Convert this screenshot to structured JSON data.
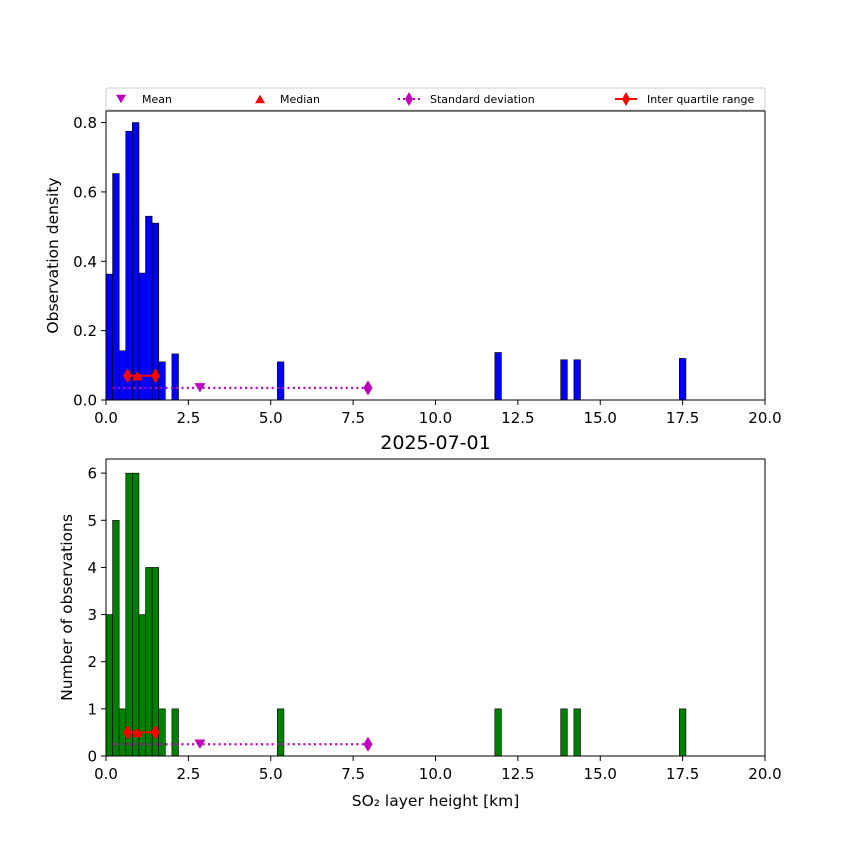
{
  "chart_data": [
    {
      "type": "bar",
      "panel": "top",
      "title": "",
      "xlabel": "",
      "ylabel": "Observation density",
      "xlim": [
        0,
        20
      ],
      "ylim": [
        0,
        0.8333
      ],
      "x_ticks": [
        "0.0",
        "2.5",
        "5.0",
        "7.5",
        "10.0",
        "12.5",
        "15.0",
        "17.5",
        "20.0"
      ],
      "y_ticks": [
        "0.0",
        "0.2",
        "0.4",
        "0.6",
        "0.8"
      ],
      "bar_color": "#0000ff",
      "bin_width": 0.2,
      "bins": [
        {
          "x": 0.0,
          "value": 0.363
        },
        {
          "x": 0.2,
          "value": 0.653
        },
        {
          "x": 0.4,
          "value": 0.142
        },
        {
          "x": 0.6,
          "value": 0.775
        },
        {
          "x": 0.8,
          "value": 0.8
        },
        {
          "x": 1.0,
          "value": 0.366
        },
        {
          "x": 1.2,
          "value": 0.53
        },
        {
          "x": 1.4,
          "value": 0.51
        },
        {
          "x": 1.6,
          "value": 0.11
        },
        {
          "x": 2.0,
          "value": 0.133
        },
        {
          "x": 5.2,
          "value": 0.11
        },
        {
          "x": 11.8,
          "value": 0.137
        },
        {
          "x": 13.8,
          "value": 0.116
        },
        {
          "x": 14.2,
          "value": 0.116
        },
        {
          "x": 17.4,
          "value": 0.12
        }
      ],
      "stats": {
        "y": 0.035,
        "iqr_y": 0.07,
        "mean": 2.85,
        "median": 0.95,
        "std_range": [
          0.2,
          7.95
        ],
        "iqr": [
          0.65,
          1.5
        ]
      }
    },
    {
      "type": "bar",
      "panel": "bottom",
      "title": "2025-07-01",
      "xlabel": "SO₂ layer height [km]",
      "ylabel": "Number of observations",
      "xlim": [
        0,
        20
      ],
      "ylim": [
        0,
        6.3
      ],
      "x_ticks": [
        "0.0",
        "2.5",
        "5.0",
        "7.5",
        "10.0",
        "12.5",
        "15.0",
        "17.5",
        "20.0"
      ],
      "y_ticks": [
        "0",
        "1",
        "2",
        "3",
        "4",
        "5",
        "6"
      ],
      "bar_color": "#008000",
      "bin_width": 0.2,
      "bins": [
        {
          "x": 0.0,
          "value": 3
        },
        {
          "x": 0.2,
          "value": 5
        },
        {
          "x": 0.4,
          "value": 1
        },
        {
          "x": 0.6,
          "value": 6
        },
        {
          "x": 0.8,
          "value": 6
        },
        {
          "x": 1.0,
          "value": 3
        },
        {
          "x": 1.2,
          "value": 4
        },
        {
          "x": 1.4,
          "value": 4
        },
        {
          "x": 1.6,
          "value": 1
        },
        {
          "x": 2.0,
          "value": 1
        },
        {
          "x": 5.2,
          "value": 1
        },
        {
          "x": 11.8,
          "value": 1
        },
        {
          "x": 13.8,
          "value": 1
        },
        {
          "x": 14.2,
          "value": 1
        },
        {
          "x": 17.4,
          "value": 1
        }
      ],
      "stats": {
        "y": 0.25,
        "iqr_y": 0.5,
        "mean": 2.85,
        "median": 0.95,
        "std_range": [
          0.2,
          7.95
        ],
        "iqr": [
          0.65,
          1.5
        ]
      }
    }
  ],
  "legend": {
    "placement": "top",
    "items": [
      {
        "label": "Mean",
        "marker": "triangle-down",
        "color": "#bf00bf"
      },
      {
        "label": "Median",
        "marker": "triangle-up",
        "color": "#ff0000"
      },
      {
        "label": "Standard deviation",
        "marker": "diamond-dotted-line",
        "color": "#bf00bf"
      },
      {
        "label": "Inter quartile range",
        "marker": "diamond-solid-line",
        "color": "#ff0000"
      }
    ]
  },
  "colors": {
    "mean": "#bf00bf",
    "median": "#ff0000",
    "std": "#bf00bf",
    "iqr": "#ff0000"
  }
}
